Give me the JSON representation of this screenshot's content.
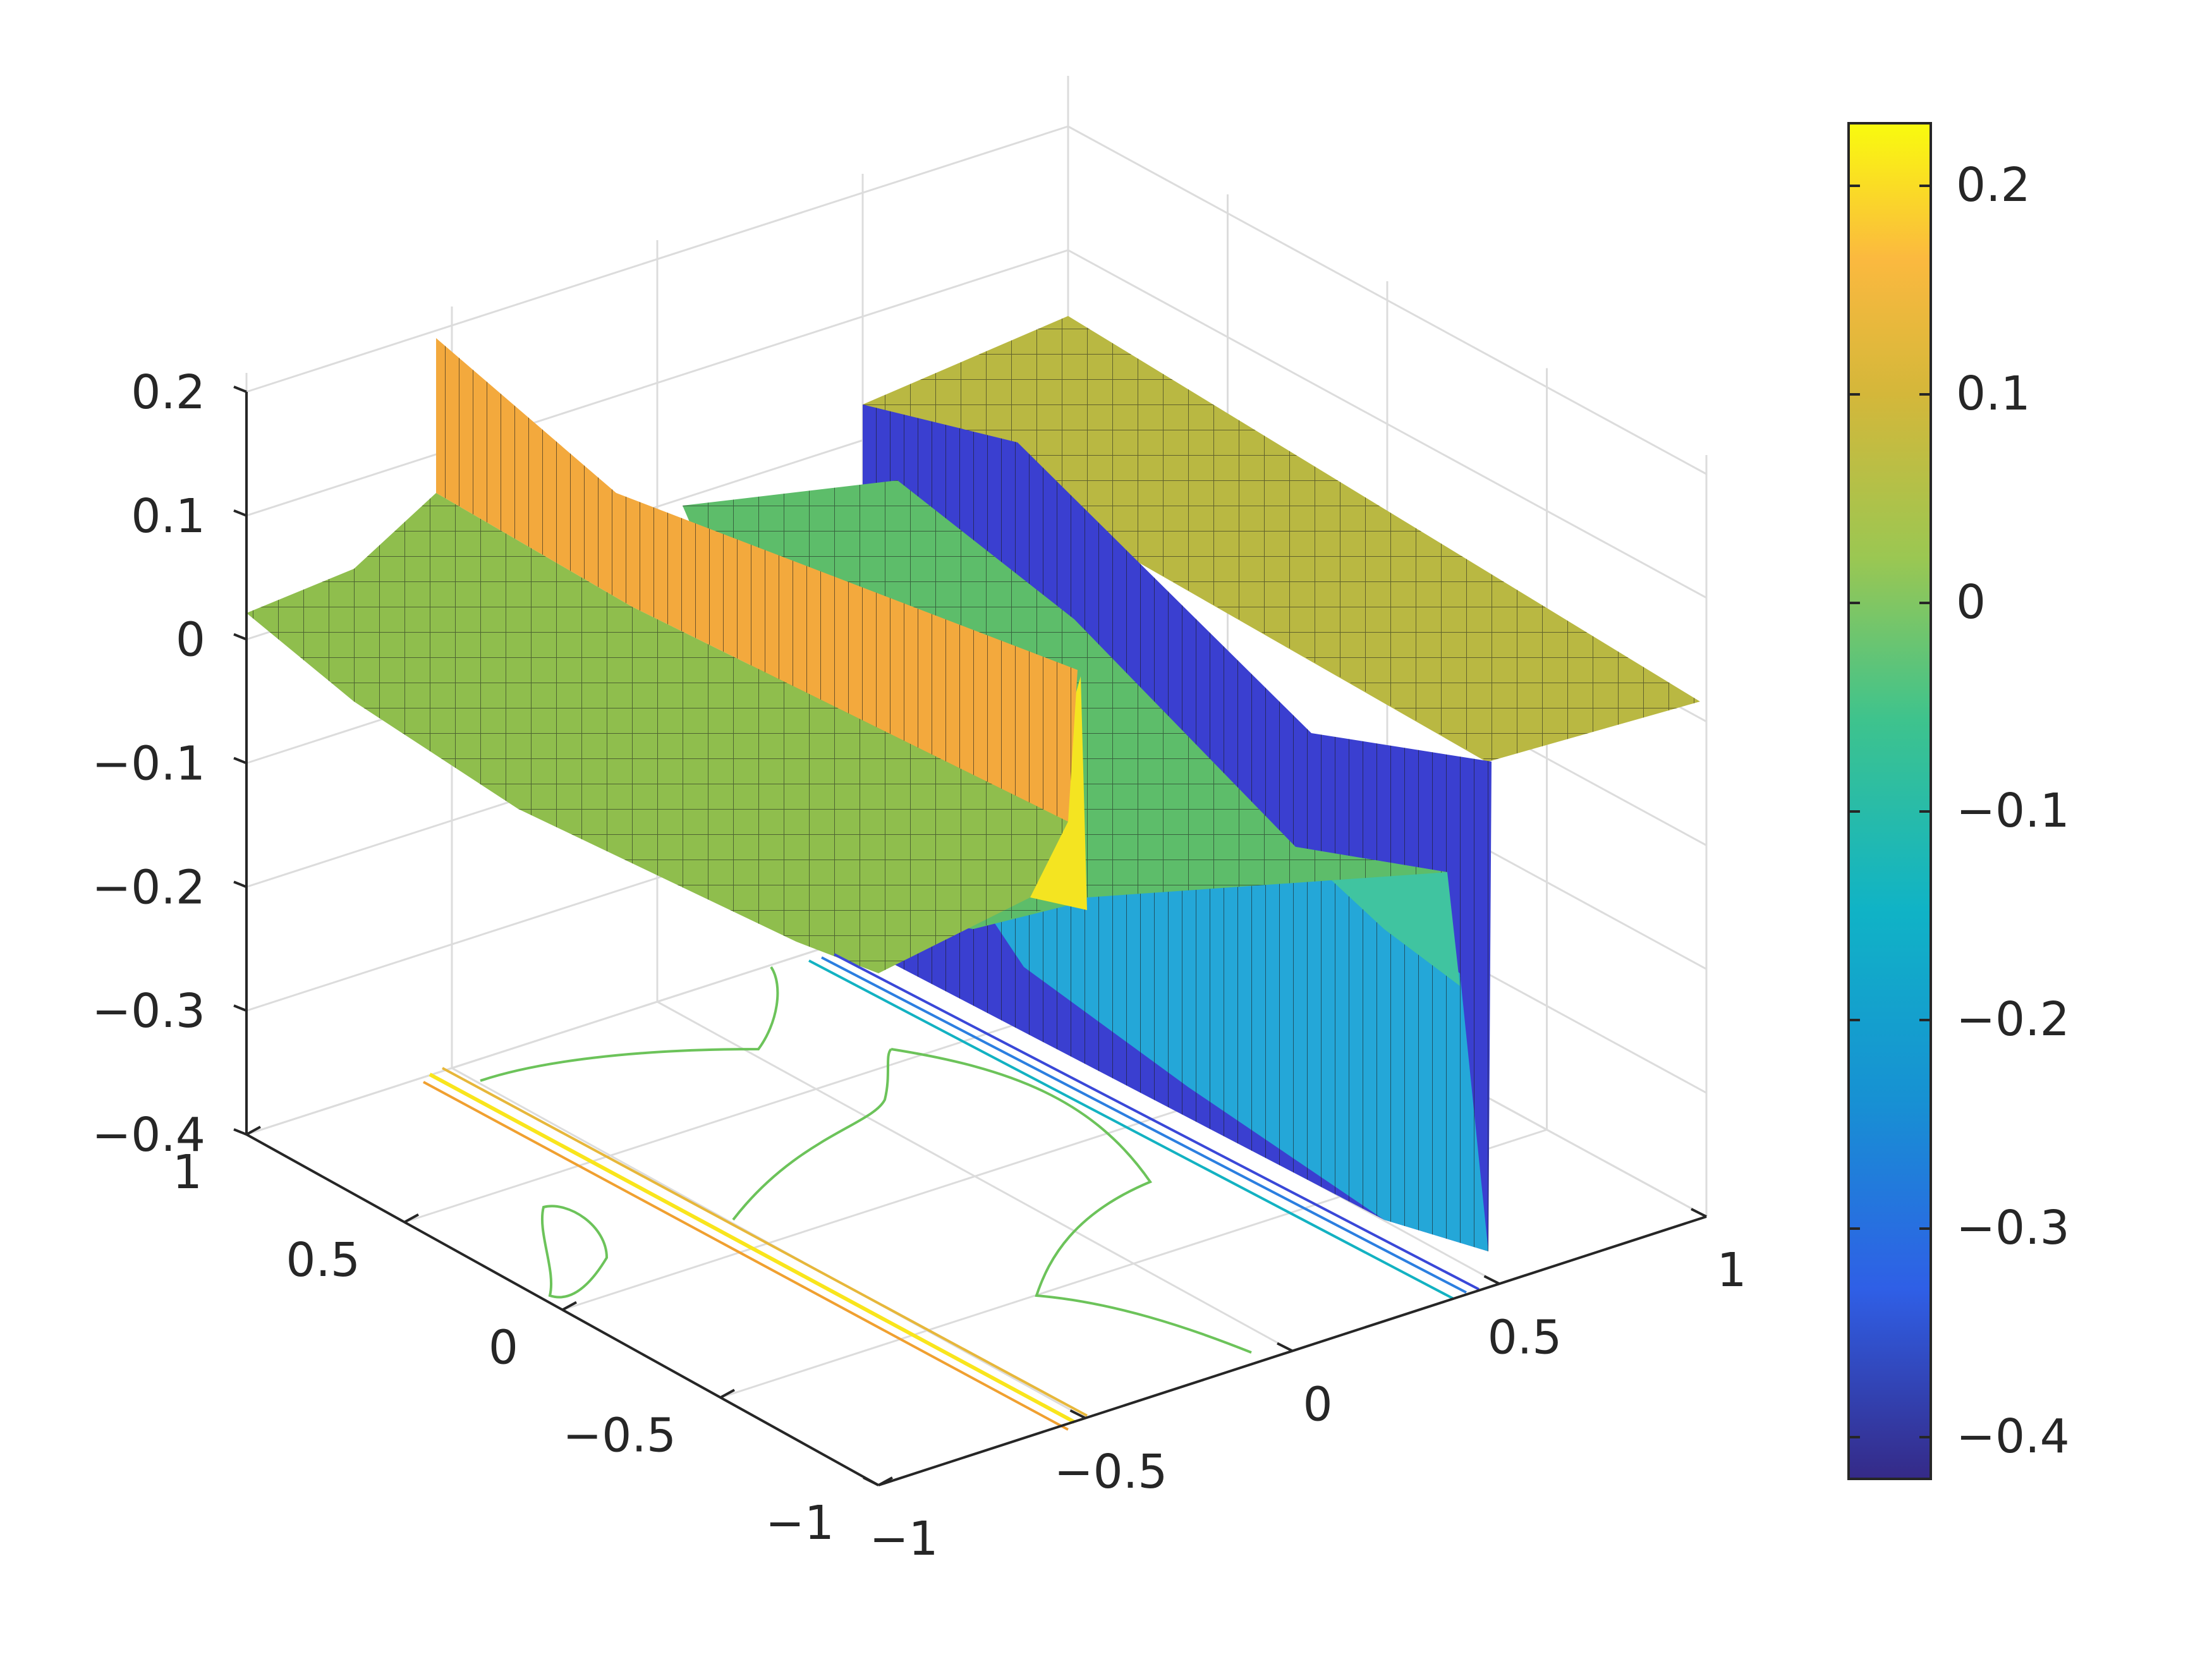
{
  "chart_data": {
    "type": "surface",
    "title": "",
    "xlabel": "",
    "ylabel": "",
    "zlabel": "",
    "xlim": [
      -1,
      1
    ],
    "ylim": [
      -1,
      1
    ],
    "zlim": [
      -0.4,
      0.2
    ],
    "x_ticks": [
      {
        "value": -1,
        "label": "−1"
      },
      {
        "value": -0.5,
        "label": "−0.5"
      },
      {
        "value": 0,
        "label": "0"
      },
      {
        "value": 0.5,
        "label": "0.5"
      },
      {
        "value": 1,
        "label": "1"
      }
    ],
    "y_ticks": [
      {
        "value": -1,
        "label": "−1"
      },
      {
        "value": -0.5,
        "label": "−0.5"
      },
      {
        "value": 0,
        "label": "0"
      },
      {
        "value": 0.5,
        "label": "0.5"
      },
      {
        "value": 1,
        "label": "1"
      }
    ],
    "z_ticks": [
      {
        "value": 0.2,
        "label": "0.2"
      },
      {
        "value": 0.1,
        "label": "0.1"
      },
      {
        "value": 0,
        "label": "0"
      },
      {
        "value": -0.1,
        "label": "−0.1"
      },
      {
        "value": -0.2,
        "label": "−0.2"
      },
      {
        "value": -0.3,
        "label": "−0.3"
      },
      {
        "value": -0.4,
        "label": "−0.4"
      }
    ],
    "colorbar": {
      "range": [
        -0.42,
        0.23
      ],
      "colormap": "parula",
      "colors": [
        "#352a87",
        "#2f5fe6",
        "#1791d3",
        "#10b3c6",
        "#3ec38d",
        "#9bc752",
        "#d4b73a",
        "#fbb93f",
        "#f9fb0e"
      ],
      "ticks": [
        {
          "value": 0.2,
          "label": "0.2"
        },
        {
          "value": 0.1,
          "label": "0.1"
        },
        {
          "value": 0,
          "label": "0"
        },
        {
          "value": -0.1,
          "label": "−0.1"
        },
        {
          "value": -0.2,
          "label": "−0.2"
        },
        {
          "value": -0.3,
          "label": "−0.3"
        },
        {
          "value": -0.4,
          "label": "−0.4"
        }
      ]
    },
    "grid": true,
    "contour_floor": true,
    "approximate_surface": {
      "description_levels": {
        "high_ridge_max": 0.2,
        "left_plateau": 0.03,
        "right_plateau": 0.06,
        "deep_trough_min": -0.42
      }
    }
  }
}
